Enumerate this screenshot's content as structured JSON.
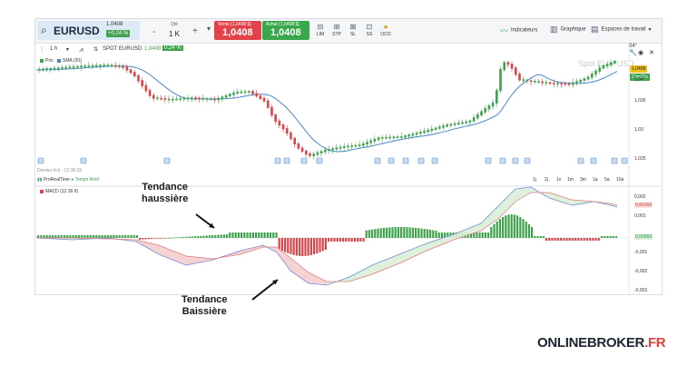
{
  "symbol": {
    "name": "EURUSD",
    "price": "1,0408",
    "change": "+0,24 %"
  },
  "quantity": {
    "label": "Qté",
    "value": "1 K",
    "minus": "-",
    "plus": "+"
  },
  "sell": {
    "label": "Vente (1,0408 $)",
    "price": "1,0408"
  },
  "buy": {
    "label": "Achat (1,0408 $)",
    "price": "1,0408"
  },
  "order_types": [
    {
      "label": "LIM"
    },
    {
      "label": "STP"
    },
    {
      "label": "SL"
    },
    {
      "label": "SS"
    },
    {
      "label": "OCO"
    }
  ],
  "tools": {
    "indicators": "Indicateurs",
    "charts": "Graphique",
    "workspaces": "Espaces de travail"
  },
  "chart_header": {
    "interval": "1 h",
    "instrument": "SPOT EURUSD",
    "price": "1,0408",
    "change": "0.24 %"
  },
  "legend": {
    "price": "Prix",
    "sma": "SMA (20)"
  },
  "watermark": "Spot EUR USD",
  "badges": {
    "corner": "04°",
    "price": "1,0408",
    "countdown": "21m27s"
  },
  "price_axis": [
    "1,04",
    "1,035",
    "1,03",
    "1,025"
  ],
  "last_tick": "Dernier tick : 12:38:33",
  "prorealtime": {
    "name": "ProRealTime",
    "mode": "Temps Réel"
  },
  "timeframes": [
    "1j",
    "2j",
    "1s",
    "1m",
    "3m",
    "1a",
    "5a",
    "10a"
  ],
  "macd_label": "MACD (12 26 9)",
  "macd_axis": [
    "0,002",
    "0,00169",
    "0,001",
    "0,00003",
    "-0,001",
    "-0,002",
    "-0,003"
  ],
  "annotations": {
    "up": [
      "Tendance",
      "haussière"
    ],
    "down": [
      "Tendance",
      "Baissière"
    ]
  },
  "brand": {
    "main": "ONLINEBROKER",
    "suffix": ".FR"
  },
  "colors": {
    "up": "#3fa34d",
    "down": "#d9454a",
    "sma": "#4a86c8",
    "sell": "#e2424a",
    "buy": "#39a84a"
  },
  "icons": [
    "search-icon",
    "indicators-icon",
    "charts-icon",
    "workspaces-icon",
    "wrench-icon",
    "camera-icon",
    "close-icon"
  ]
}
